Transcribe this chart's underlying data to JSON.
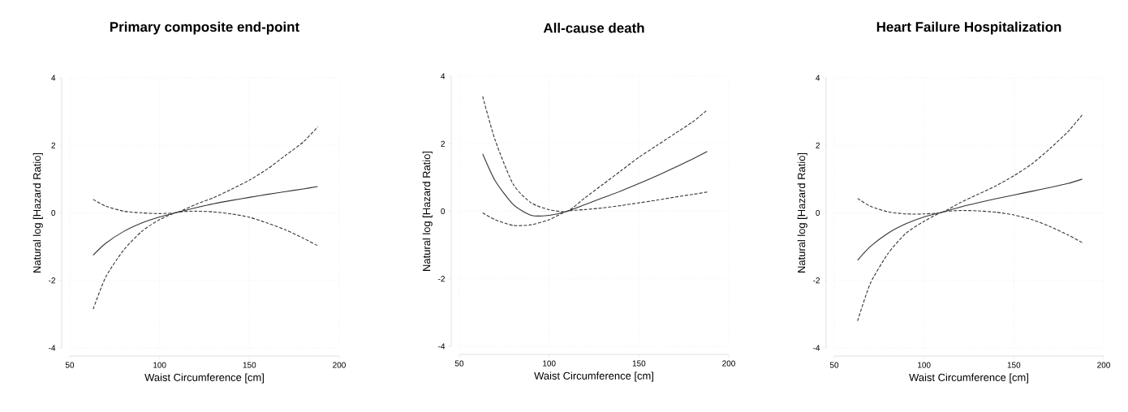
{
  "chart_data": [
    {
      "type": "line",
      "title": "Primary composite end-point",
      "xlabel": "Waist Circumference [cm]",
      "ylabel": "Natural log [Hazard Ratio]",
      "x": [
        63,
        70,
        80,
        90,
        100,
        110,
        120,
        130,
        140,
        150,
        160,
        170,
        180,
        188
      ],
      "xlim": [
        50,
        200
      ],
      "xticks": [
        50,
        100,
        150,
        200
      ],
      "ylim": [
        -4,
        4
      ],
      "yticks": [
        -4,
        -2,
        0,
        2,
        4
      ],
      "grid": true,
      "series": [
        {
          "color": "#333333",
          "line_style": "solid",
          "values": [
            -1.25,
            -0.9,
            -0.55,
            -0.3,
            -0.12,
            0.02,
            0.15,
            0.27,
            0.37,
            0.46,
            0.55,
            0.63,
            0.71,
            0.78
          ]
        },
        {
          "color": "#333333",
          "line_style": "dashed",
          "values": [
            0.4,
            0.2,
            0.05,
            0.0,
            -0.02,
            0.02,
            0.25,
            0.45,
            0.7,
            0.97,
            1.3,
            1.7,
            2.1,
            2.55
          ]
        },
        {
          "color": "#333333",
          "line_style": "dashed",
          "values": [
            -2.85,
            -1.9,
            -1.1,
            -0.55,
            -0.2,
            0.02,
            0.05,
            0.03,
            -0.03,
            -0.13,
            -0.3,
            -0.5,
            -0.75,
            -0.97
          ]
        }
      ]
    },
    {
      "type": "line",
      "title": "All-cause death",
      "xlabel": "Waist Circumference [cm]",
      "ylabel": "Natural log [Hazard Ratio]",
      "x": [
        63,
        70,
        80,
        90,
        100,
        110,
        120,
        130,
        140,
        150,
        160,
        170,
        180,
        188
      ],
      "xlim": [
        50,
        200
      ],
      "xticks": [
        50,
        100,
        150,
        200
      ],
      "ylim": [
        -4,
        4
      ],
      "yticks": [
        -4,
        -2,
        0,
        2,
        4
      ],
      "grid": true,
      "series": [
        {
          "color": "#333333",
          "line_style": "solid",
          "values": [
            1.7,
            0.9,
            0.2,
            -0.12,
            -0.12,
            0.0,
            0.2,
            0.4,
            0.6,
            0.82,
            1.05,
            1.3,
            1.55,
            1.77
          ]
        },
        {
          "color": "#333333",
          "line_style": "dashed",
          "values": [
            3.4,
            2.1,
            0.8,
            0.25,
            0.05,
            0.0,
            0.4,
            0.8,
            1.2,
            1.6,
            1.95,
            2.3,
            2.65,
            3.0
          ]
        },
        {
          "color": "#333333",
          "line_style": "dashed",
          "values": [
            -0.05,
            -0.25,
            -0.42,
            -0.4,
            -0.25,
            0.0,
            0.05,
            0.1,
            0.17,
            0.25,
            0.33,
            0.42,
            0.5,
            0.57
          ]
        }
      ]
    },
    {
      "type": "line",
      "title": "Heart Failure Hospitalization",
      "xlabel": "Waist Circumference [cm]",
      "ylabel": "Natural log [Hazard Ratio]",
      "x": [
        63,
        70,
        80,
        90,
        100,
        110,
        120,
        130,
        140,
        150,
        160,
        170,
        180,
        188
      ],
      "xlim": [
        50,
        200
      ],
      "xticks": [
        50,
        100,
        150,
        200
      ],
      "ylim": [
        -4,
        4
      ],
      "yticks": [
        -4,
        -2,
        0,
        2,
        4
      ],
      "grid": true,
      "series": [
        {
          "color": "#333333",
          "line_style": "solid",
          "values": [
            -1.4,
            -1.0,
            -0.6,
            -0.32,
            -0.12,
            0.02,
            0.17,
            0.3,
            0.42,
            0.53,
            0.64,
            0.75,
            0.87,
            1.0
          ]
        },
        {
          "color": "#333333",
          "line_style": "dashed",
          "values": [
            0.43,
            0.2,
            0.03,
            -0.03,
            -0.03,
            0.02,
            0.3,
            0.55,
            0.8,
            1.1,
            1.45,
            1.9,
            2.4,
            2.9
          ]
        },
        {
          "color": "#333333",
          "line_style": "dashed",
          "values": [
            -3.2,
            -2.1,
            -1.2,
            -0.6,
            -0.25,
            0.02,
            0.07,
            0.06,
            0.02,
            -0.06,
            -0.2,
            -0.4,
            -0.65,
            -0.88
          ]
        }
      ]
    }
  ]
}
